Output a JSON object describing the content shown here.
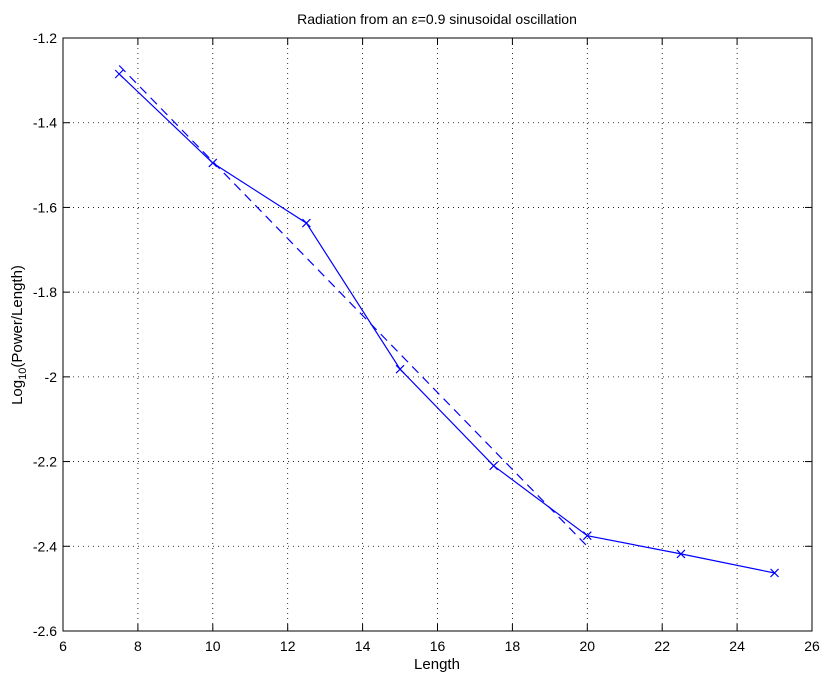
{
  "chart_data": {
    "type": "line",
    "title": "Radiation from an ε=0.9 sinusoidal oscillation",
    "xlabel": "Length",
    "ylabel": "Log",
    "ylabel_subscript": "10",
    "ylabel_suffix": "(Power/Length)",
    "xlim": [
      6,
      26
    ],
    "ylim": [
      -2.6,
      -1.2
    ],
    "xticks": [
      6,
      8,
      10,
      12,
      14,
      16,
      18,
      20,
      22,
      24,
      26
    ],
    "yticks": [
      -2.6,
      -2.4,
      -2.2,
      -2,
      -1.8,
      -1.6,
      -1.4,
      -1.2
    ],
    "grid": true,
    "series": [
      {
        "style": "solid",
        "marker": "x",
        "color": "#0000ff",
        "x": [
          7.5,
          10,
          12.5,
          15,
          17.5,
          20,
          22.5,
          25
        ],
        "y": [
          -1.285,
          -1.495,
          -1.637,
          -1.982,
          -2.21,
          -2.375,
          -2.418,
          -2.463
        ]
      },
      {
        "style": "dashed",
        "color": "#0000ff",
        "x": [
          7.5,
          20
        ],
        "y": [
          -1.265,
          -2.4
        ]
      }
    ]
  }
}
